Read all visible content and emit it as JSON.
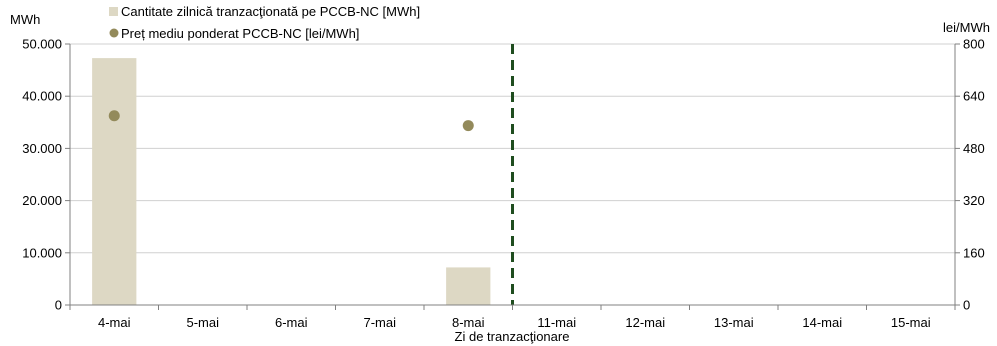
{
  "chart_data": {
    "type": "bar+scatter",
    "xlabel": "Zi de tranzacţionare",
    "categories": [
      "4-mai",
      "5-mai",
      "6-mai",
      "7-mai",
      "8-mai",
      "11-mai",
      "12-mai",
      "13-mai",
      "14-mai",
      "15-mai"
    ],
    "left_axis": {
      "unit": "MWh",
      "ylim": [
        0,
        50000
      ],
      "ticks": [
        "0",
        "10.000",
        "20.000",
        "30.000",
        "40.000",
        "50.000"
      ],
      "tick_values": [
        0,
        10000,
        20000,
        30000,
        40000,
        50000
      ]
    },
    "right_axis": {
      "unit": "lei/MWh",
      "ylim": [
        0,
        800
      ],
      "ticks": [
        "0",
        "160",
        "320",
        "480",
        "640",
        "800"
      ],
      "tick_values": [
        0,
        160,
        320,
        480,
        640,
        800
      ]
    },
    "series": [
      {
        "name": "Cantitate zilnică tranzacţionată pe PCCB-NC [MWh]",
        "type": "bar",
        "axis": "left",
        "color": "#ddd8c4",
        "values": [
          47300,
          null,
          null,
          null,
          7200,
          null,
          null,
          null,
          null,
          null
        ]
      },
      {
        "name": "Preț mediu ponderat PCCB-NC [lei/MWh]",
        "type": "scatter",
        "axis": "right",
        "color": "#938a5b",
        "values": [
          580,
          null,
          null,
          null,
          550,
          null,
          null,
          null,
          null,
          null
        ]
      }
    ],
    "vertical_marker": {
      "after_category": "8-mai",
      "color": "#1f4d1f",
      "style": "dashed"
    },
    "grid": true,
    "legend_placement": "top-left"
  }
}
